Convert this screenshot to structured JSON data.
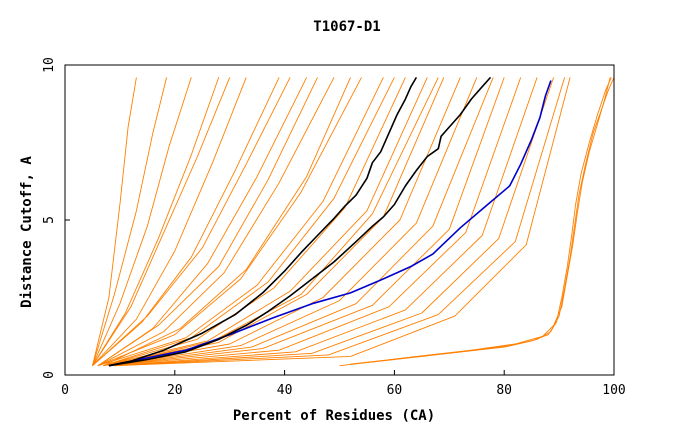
{
  "chart_data": {
    "type": "line",
    "title": "T1067-D1",
    "xlabel": "Percent of Residues (CA)",
    "ylabel": "Distance Cutoff, A",
    "xlim": [
      0,
      100
    ],
    "ylim": [
      0,
      10
    ],
    "x_ticks": [
      "0",
      "20",
      "40",
      "60",
      "80",
      "100"
    ],
    "y_ticks": [
      "0",
      "5",
      "10"
    ],
    "grid": false,
    "legend": "none",
    "colors": {
      "models": "#ff8000",
      "highlight_black": "#000000",
      "highlight_blue": "#0000cc"
    },
    "series": [
      {
        "color": "#0000cc",
        "x": [
          8,
          15,
          22,
          30,
          38,
          45,
          52,
          58,
          63,
          67,
          72,
          77,
          81,
          83,
          85,
          86.5,
          87.5,
          88.5
        ],
        "y": [
          0.3,
          0.55,
          0.8,
          1.3,
          1.85,
          2.3,
          2.65,
          3.1,
          3.5,
          3.9,
          4.75,
          5.5,
          6.1,
          6.8,
          7.6,
          8.3,
          9.0,
          9.5
        ]
      },
      {
        "color": "#000000",
        "x": [
          8,
          15,
          22,
          28,
          33,
          37,
          41,
          45,
          49,
          53,
          56,
          58,
          60,
          62,
          64,
          66,
          68,
          68.5,
          70,
          72,
          74,
          76,
          77.5
        ],
        "y": [
          0.3,
          0.5,
          0.75,
          1.15,
          1.6,
          2.05,
          2.55,
          3.1,
          3.65,
          4.3,
          4.8,
          5.1,
          5.5,
          6.1,
          6.6,
          7.05,
          7.3,
          7.7,
          8.0,
          8.4,
          8.9,
          9.3,
          9.6
        ]
      },
      {
        "color": "#000000",
        "x": [
          8,
          12,
          18,
          25,
          31,
          36,
          40,
          43,
          46,
          49,
          51,
          53,
          55,
          56,
          57.5,
          59,
          60.5,
          62,
          63,
          64
        ],
        "y": [
          0.3,
          0.45,
          0.8,
          1.35,
          1.95,
          2.65,
          3.35,
          3.95,
          4.5,
          5.05,
          5.45,
          5.8,
          6.35,
          6.85,
          7.2,
          7.8,
          8.4,
          8.9,
          9.3,
          9.6
        ]
      },
      {
        "color": "#ff8000",
        "x": [
          50,
          60,
          70,
          80,
          85,
          88,
          89.5,
          90.5,
          91.5,
          92.3,
          93,
          94,
          95.5,
          97,
          98.5,
          99.5
        ],
        "y": [
          0.3,
          0.5,
          0.7,
          0.9,
          1.1,
          1.3,
          1.7,
          2.5,
          3.5,
          4.5,
          5.5,
          6.5,
          7.5,
          8.4,
          9.2,
          9.6
        ]
      },
      {
        "color": "#ff8000",
        "x": [
          52,
          62,
          72,
          81,
          86,
          88.5,
          90,
          91,
          92,
          92.8,
          93.6,
          94.8,
          96.2,
          97.8,
          99,
          100
        ],
        "y": [
          0.35,
          0.55,
          0.75,
          0.95,
          1.15,
          1.4,
          1.9,
          2.8,
          3.8,
          4.8,
          5.8,
          6.8,
          7.8,
          8.6,
          9.2,
          9.6
        ]
      },
      {
        "color": "#ff8000",
        "x": [
          55,
          64,
          74,
          82,
          87,
          89,
          90.5,
          91.5,
          92.5,
          93.3,
          94.2,
          95.5,
          97,
          98.3,
          99.3
        ],
        "y": [
          0.4,
          0.6,
          0.8,
          1.0,
          1.25,
          1.6,
          2.2,
          3.2,
          4.2,
          5.2,
          6.2,
          7.2,
          8.1,
          8.9,
          9.6
        ]
      },
      {
        "color": "#ff8000",
        "x": [
          5,
          8,
          10,
          11.5,
          13
        ],
        "y": [
          0.3,
          2.5,
          5.5,
          8.0,
          9.6
        ]
      },
      {
        "color": "#ff8000",
        "x": [
          5,
          9,
          13,
          16,
          18.5
        ],
        "y": [
          0.3,
          2.6,
          5.3,
          7.8,
          9.6
        ]
      },
      {
        "color": "#ff8000",
        "x": [
          5,
          10,
          15,
          19,
          23
        ],
        "y": [
          0.3,
          2.3,
          4.8,
          7.4,
          9.6
        ]
      },
      {
        "color": "#ff8000",
        "x": [
          5,
          11,
          17,
          23,
          28
        ],
        "y": [
          0.3,
          2.0,
          4.4,
          7.1,
          9.6
        ]
      },
      {
        "color": "#ff8000",
        "x": [
          5,
          13,
          20,
          27,
          33
        ],
        "y": [
          0.3,
          1.8,
          4.0,
          6.9,
          9.6
        ]
      },
      {
        "color": "#ff8000",
        "x": [
          5,
          14,
          23,
          31,
          39
        ],
        "y": [
          0.3,
          1.7,
          3.8,
          6.6,
          9.6
        ]
      },
      {
        "color": "#ff8000",
        "x": [
          6,
          16,
          26,
          35,
          44
        ],
        "y": [
          0.3,
          1.5,
          3.6,
          6.4,
          9.6
        ]
      },
      {
        "color": "#ff8000",
        "x": [
          6,
          18,
          29,
          39,
          49
        ],
        "y": [
          0.3,
          1.4,
          3.3,
          6.2,
          9.6
        ]
      },
      {
        "color": "#ff8000",
        "x": [
          6,
          20,
          32,
          43,
          54
        ],
        "y": [
          0.3,
          1.3,
          3.1,
          5.9,
          9.6
        ]
      },
      {
        "color": "#ff8000",
        "x": [
          6,
          22,
          35,
          47,
          58
        ],
        "y": [
          0.3,
          1.2,
          2.9,
          5.6,
          9.6
        ]
      },
      {
        "color": "#ff8000",
        "x": [
          7,
          24,
          38,
          51,
          62
        ],
        "y": [
          0.3,
          1.15,
          2.8,
          5.4,
          9.6
        ]
      },
      {
        "color": "#ff8000",
        "x": [
          7,
          26,
          41,
          55,
          66
        ],
        "y": [
          0.3,
          1.1,
          2.7,
          5.3,
          9.6
        ]
      },
      {
        "color": "#ff8000",
        "x": [
          7,
          28,
          44,
          58,
          69
        ],
        "y": [
          0.3,
          1.05,
          2.6,
          5.1,
          9.6
        ]
      },
      {
        "color": "#ff8000",
        "x": [
          7,
          30,
          47,
          61,
          72
        ],
        "y": [
          0.3,
          1.0,
          2.5,
          5.0,
          9.6
        ]
      },
      {
        "color": "#ff8000",
        "x": [
          8,
          32,
          50,
          64,
          75
        ],
        "y": [
          0.3,
          0.95,
          2.4,
          4.9,
          9.6
        ]
      },
      {
        "color": "#ff8000",
        "x": [
          8,
          34,
          53,
          67,
          78
        ],
        "y": [
          0.3,
          0.9,
          2.3,
          4.8,
          9.6
        ]
      },
      {
        "color": "#ff8000",
        "x": [
          8,
          36,
          56,
          70,
          80
        ],
        "y": [
          0.3,
          0.85,
          2.25,
          4.7,
          9.6
        ]
      },
      {
        "color": "#ff8000",
        "x": [
          8,
          39,
          59,
          73,
          83
        ],
        "y": [
          0.3,
          0.8,
          2.2,
          4.6,
          9.6
        ]
      },
      {
        "color": "#ff8000",
        "x": [
          9,
          42,
          62,
          76,
          86
        ],
        "y": [
          0.3,
          0.75,
          2.1,
          4.5,
          9.6
        ]
      },
      {
        "color": "#ff8000",
        "x": [
          9,
          45,
          65,
          79,
          89
        ],
        "y": [
          0.3,
          0.7,
          2.0,
          4.4,
          9.6
        ]
      },
      {
        "color": "#ff8000",
        "x": [
          9,
          48,
          68,
          82,
          91
        ],
        "y": [
          0.3,
          0.65,
          1.95,
          4.3,
          9.6
        ]
      },
      {
        "color": "#ff8000",
        "x": [
          9,
          52,
          71,
          84,
          92
        ],
        "y": [
          0.3,
          0.6,
          1.9,
          4.2,
          9.6
        ]
      },
      {
        "color": "#ff8000",
        "x": [
          6,
          17,
          28,
          37,
          46
        ],
        "y": [
          0.3,
          1.6,
          3.5,
          6.3,
          9.6
        ]
      },
      {
        "color": "#ff8000",
        "x": [
          7,
          21,
          33,
          44,
          52
        ],
        "y": [
          0.3,
          1.5,
          3.4,
          6.4,
          9.6
        ]
      },
      {
        "color": "#ff8000",
        "x": [
          7,
          23,
          37,
          49,
          60
        ],
        "y": [
          0.3,
          1.2,
          3.0,
          5.7,
          9.6
        ]
      },
      {
        "color": "#ff8000",
        "x": [
          8,
          27,
          43,
          56,
          68
        ],
        "y": [
          0.3,
          1.1,
          2.6,
          5.2,
          9.6
        ]
      },
      {
        "color": "#ff8000",
        "x": [
          5,
          12,
          18,
          24,
          30
        ],
        "y": [
          0.3,
          2.2,
          4.6,
          7.0,
          9.6
        ]
      },
      {
        "color": "#ff8000",
        "x": [
          5,
          15,
          25,
          33,
          41
        ],
        "y": [
          0.3,
          1.9,
          4.1,
          6.8,
          9.6
        ]
      }
    ]
  }
}
